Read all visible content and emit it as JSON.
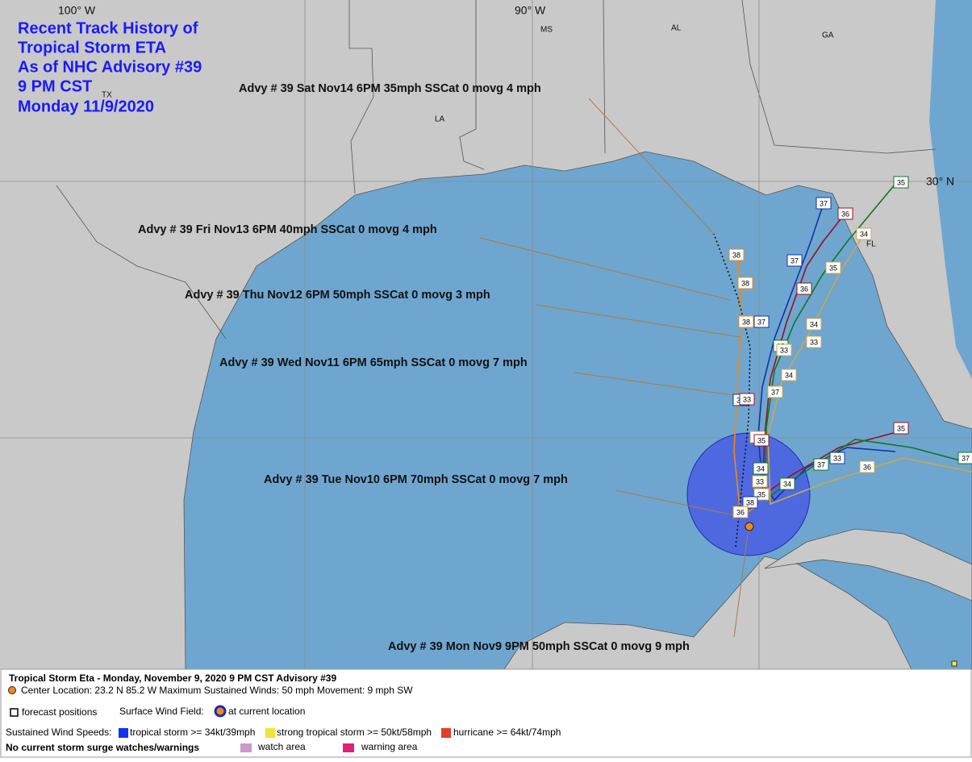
{
  "title": {
    "lines": [
      "Recent Track History of",
      "Tropical Storm ETA",
      "As of NHC Advisory #39",
      "9 PM CST",
      "Monday 11/9/2020"
    ]
  },
  "grid_labels": [
    "100° W",
    "90° W",
    "30° N"
  ],
  "place_labels": [
    "MS",
    "AL",
    "GA",
    "TX",
    "LA",
    "FL"
  ],
  "annotations": [
    "Advy # 39 Sat Nov14 6PM  35mph SSCat 0 movg 4 mph",
    "Advy # 39 Fri Nov13 6PM  40mph SSCat 0 movg 4 mph",
    "Advy # 39 Thu Nov12 6PM  50mph SSCat 0 movg 3 mph",
    "Advy # 39 Wed Nov11 6PM  65mph SSCat 0 movg 7 mph",
    "Advy # 39 Tue Nov10 6PM  70mph SSCat 0 movg 7 mph",
    "Advy # 39 Mon Nov9 9PM  50mph SSCat 0 movg 9 mph"
  ],
  "track_labels": [
    35,
    37,
    36,
    34,
    35,
    37,
    36,
    38,
    38,
    38,
    37,
    34,
    33,
    35,
    33,
    34,
    37,
    36,
    33,
    36,
    35,
    34,
    33,
    35,
    34,
    37,
    33,
    36,
    35,
    37,
    38,
    36
  ],
  "legend": {
    "heading": "Tropical Storm Eta  -  Monday, November 9, 2020  9 PM CST  Advisory #39",
    "details": "Center Location: 23.2 N  85.2 W  Maximum Sustained Winds: 50 mph  Movement: 9 mph SW",
    "forecast": "forecast positions",
    "wind_field": "Surface Wind Field:",
    "current": "at current location",
    "speeds": "Sustained Wind Speeds:",
    "ts": "tropical storm >= 34kt/39mph",
    "sts": "strong tropical storm >= 50kt/58mph",
    "hu": "hurricane >= 64kt/74mph",
    "surge": "No current storm surge watches/warnings",
    "watch": "watch area",
    "warning": "warning area"
  }
}
